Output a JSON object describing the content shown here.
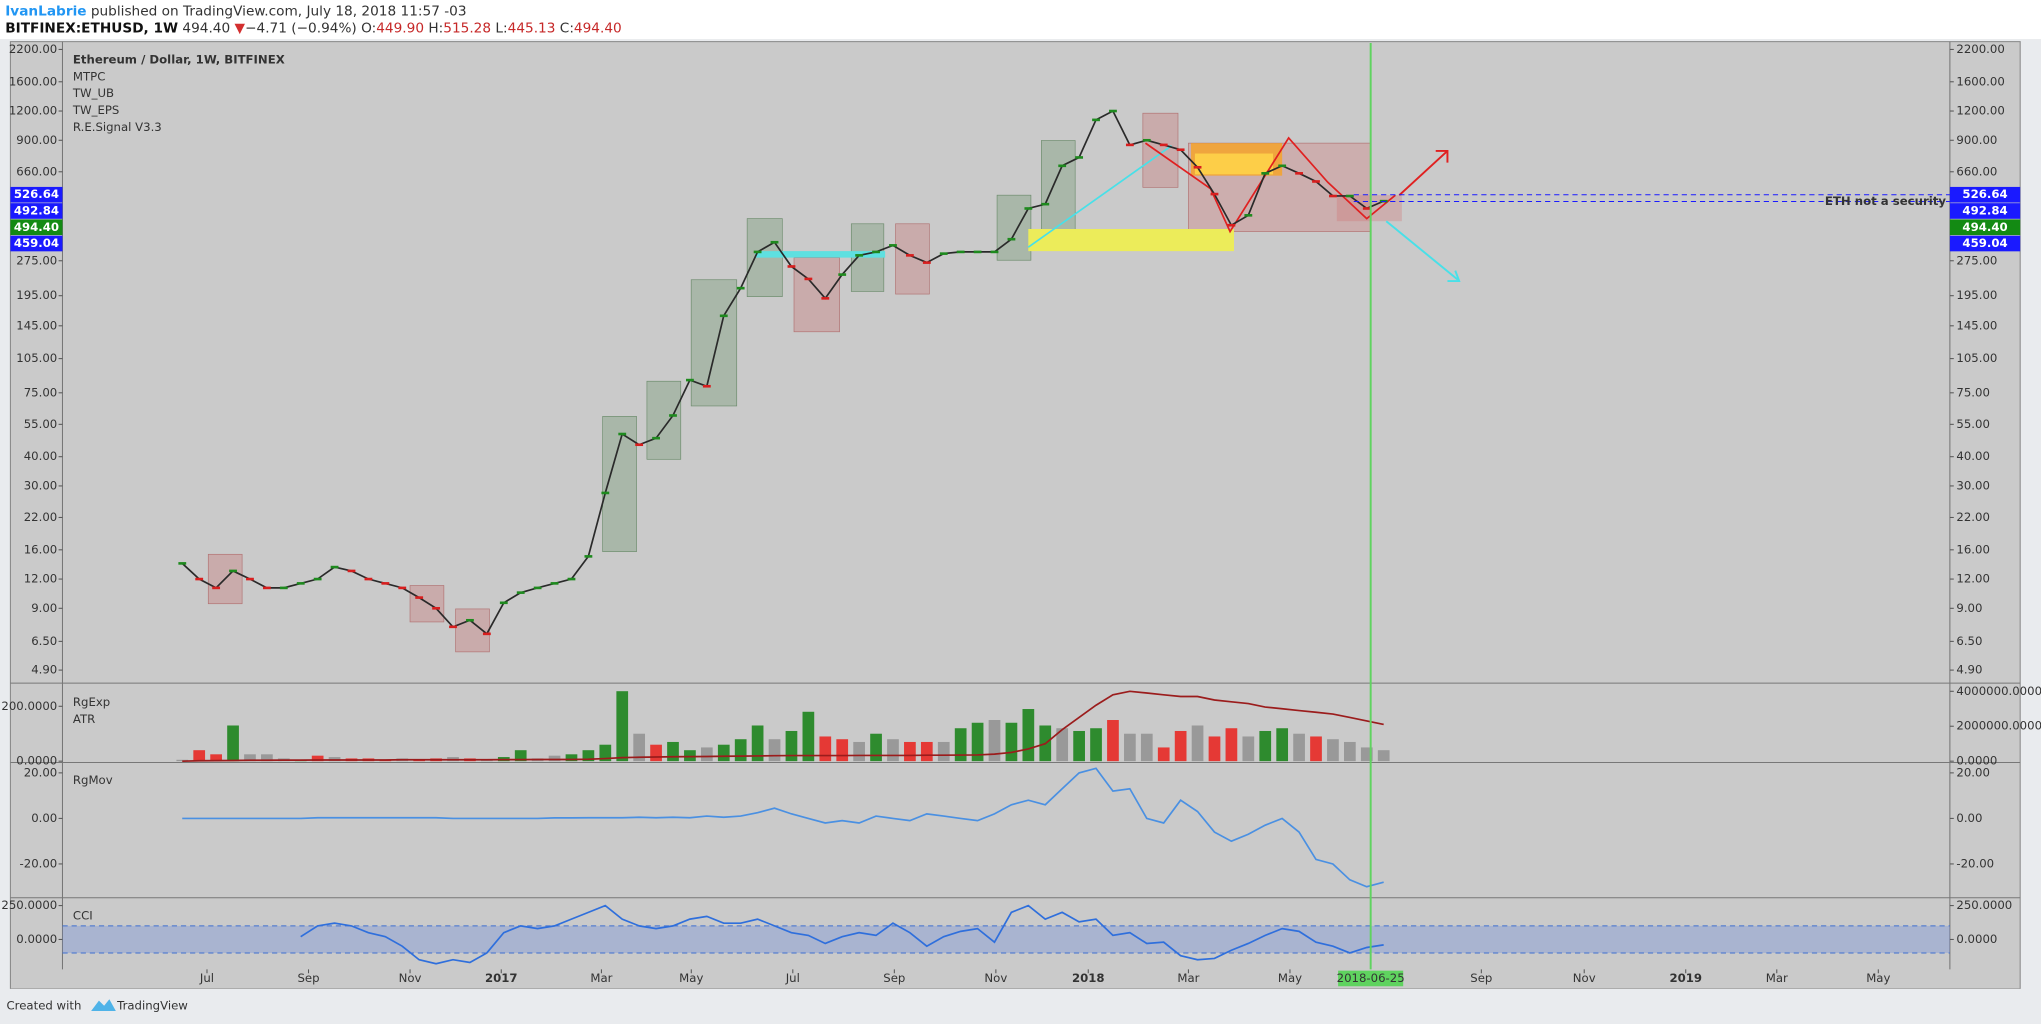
{
  "header": {
    "author": "IvanLabrie",
    "published": " published on TradingView.com, July 18, 2018 11:57 -03",
    "symbol": "BITFINEX:ETHUSD, 1W",
    "last": "494.40",
    "arrow": "▼",
    "change": "−4.71 (−0.94%)",
    "o_label": "O:",
    "o": "449.90",
    "h_label": "H:",
    "h": "515.28",
    "l_label": "L:",
    "l": "445.13",
    "c_label": "C:",
    "c": "494.40"
  },
  "chart_data": [
    {
      "type": "line",
      "title": "Ethereum / Dollar, 1W, BITFINEX",
      "indicators": [
        "MTPC",
        "TW_UB",
        "TW_EPS",
        "R.E.Signal V3.3"
      ],
      "annotation": "ETH not a security",
      "log_scale": true,
      "up_color": "#1e8a1e",
      "down_color": "#d81e1e",
      "xlim": [
        -7.08,
        104.46
      ],
      "ylim": [
        4.48,
        2345
      ],
      "yticks": [
        {
          "value": 2200,
          "label": "2200.00"
        },
        {
          "value": 1600,
          "label": "1600.00"
        },
        {
          "value": 1200,
          "label": "1200.00"
        },
        {
          "value": 900,
          "label": "900.00"
        },
        {
          "value": 660,
          "label": "660.00"
        },
        {
          "value": 275,
          "label": "275.00"
        },
        {
          "value": 195,
          "label": "195.00"
        },
        {
          "value": 145,
          "label": "145.00"
        },
        {
          "value": 105,
          "label": "105.00"
        },
        {
          "value": 75,
          "label": "75.00"
        },
        {
          "value": 55,
          "label": "55.00"
        },
        {
          "value": 40,
          "label": "40.00"
        },
        {
          "value": 30,
          "label": "30.00"
        },
        {
          "value": 22,
          "label": "22.00"
        },
        {
          "value": 16,
          "label": "16.00"
        },
        {
          "value": 12,
          "label": "12.00"
        },
        {
          "value": 9,
          "label": "9.00"
        },
        {
          "value": 6.5,
          "label": "6.50"
        },
        {
          "value": 4.9,
          "label": "4.90"
        }
      ],
      "price_labels": [
        {
          "value": 526.64,
          "label": "526.64",
          "color": "#1a1aff",
          "dashed": true
        },
        {
          "value": 492.84,
          "label": "492.84",
          "color": "#1a1aff",
          "dashed": true
        },
        {
          "value": 494.4,
          "label": "494.40",
          "color": "#138a13",
          "dashed": false
        },
        {
          "value": 459.04,
          "label": "459.04",
          "color": "#1a1aff",
          "dashed": false
        }
      ],
      "x": [
        0,
        1,
        2,
        3,
        4,
        5,
        6,
        7,
        8,
        9,
        10,
        11,
        12,
        13,
        14,
        15,
        16,
        17,
        18,
        19,
        20,
        21,
        22,
        23,
        24,
        25,
        26,
        27,
        28,
        29,
        30,
        31,
        32,
        33,
        34,
        35,
        36,
        37,
        38,
        39,
        40,
        41,
        42,
        43,
        44,
        45,
        46,
        47,
        48,
        49,
        50,
        51,
        52,
        53,
        54,
        55,
        56,
        57,
        58,
        59,
        60,
        61,
        62,
        63,
        64,
        65,
        66,
        67,
        68,
        69,
        70,
        71
      ],
      "series": [
        {
          "color": "#2a2a2a",
          "values": [
            14,
            12,
            11,
            13,
            12,
            11,
            11,
            11.5,
            12,
            13.5,
            13,
            12,
            11.5,
            11,
            10,
            9,
            7.5,
            8,
            7,
            9.5,
            10.5,
            11,
            11.5,
            12,
            15,
            28,
            50,
            45,
            48,
            60,
            85,
            80,
            160,
            210,
            300,
            330,
            260,
            230,
            190,
            240,
            290,
            300,
            320,
            290,
            270,
            295,
            300,
            300,
            300,
            340,
            460,
            480,
            700,
            760,
            1100,
            1200,
            860,
            900,
            860,
            820,
            690,
            530,
            390,
            430,
            650,
            700,
            650,
            600,
            520,
            520,
            460,
            494.4
          ]
        }
      ]
    },
    {
      "type": "bar",
      "legend_labels": [
        "RgExp",
        "ATR"
      ],
      "xlim": [
        -7.08,
        104.46
      ],
      "ylim": [
        0,
        275
      ],
      "y2lim": [
        0,
        4320000
      ],
      "yticks": [
        {
          "value": 200,
          "label": "200.0000"
        },
        {
          "value": 0,
          "label": "0.0000"
        }
      ],
      "y2ticks": [
        {
          "value": 4000000,
          "label": "4000000.0000"
        },
        {
          "value": 2000000,
          "label": "2000000.0000"
        },
        {
          "value": 0,
          "label": "0.0000"
        }
      ],
      "x": [
        0,
        1,
        2,
        3,
        4,
        5,
        6,
        7,
        8,
        9,
        10,
        11,
        12,
        13,
        14,
        15,
        16,
        17,
        18,
        19,
        20,
        21,
        22,
        23,
        24,
        25,
        26,
        27,
        28,
        29,
        30,
        31,
        32,
        33,
        34,
        35,
        36,
        37,
        38,
        39,
        40,
        41,
        42,
        43,
        44,
        45,
        46,
        47,
        48,
        49,
        50,
        51,
        52,
        53,
        54,
        55,
        56,
        57,
        58,
        59,
        60,
        61,
        62,
        63,
        64,
        65,
        66,
        67,
        68,
        69,
        70,
        71
      ],
      "series": [
        {
          "values": [
            5,
            40,
            25,
            130,
            25,
            25,
            10,
            5,
            20,
            15,
            10,
            10,
            5,
            10,
            5,
            10,
            15,
            10,
            5,
            15,
            40,
            10,
            20,
            25,
            40,
            60,
            255,
            100,
            60,
            70,
            40,
            50,
            60,
            80,
            130,
            80,
            110,
            180,
            90,
            80,
            70,
            100,
            80,
            70,
            70,
            70,
            120,
            140,
            150,
            140,
            190,
            130,
            120,
            110,
            120,
            150,
            100,
            100,
            50,
            110,
            130,
            90,
            120,
            90,
            110,
            120,
            100,
            90,
            80,
            70,
            50,
            40
          ],
          "colors": [
            "#999999",
            "#e53935",
            "#e53935",
            "#2e8b2e",
            "#999999",
            "#999999",
            "#999999",
            "#2e8b2e",
            "#e53935",
            "#999999",
            "#e53935",
            "#e53935",
            "#e53935",
            "#999999",
            "#e53935",
            "#e53935",
            "#999999",
            "#e53935",
            "#999999",
            "#2e8b2e",
            "#2e8b2e",
            "#999999",
            "#999999",
            "#2e8b2e",
            "#2e8b2e",
            "#2e8b2e",
            "#2e8b2e",
            "#999999",
            "#e53935",
            "#2e8b2e",
            "#2e8b2e",
            "#999999",
            "#2e8b2e",
            "#2e8b2e",
            "#2e8b2e",
            "#999999",
            "#2e8b2e",
            "#2e8b2e",
            "#e53935",
            "#e53935",
            "#999999",
            "#2e8b2e",
            "#999999",
            "#e53935",
            "#e53935",
            "#999999",
            "#2e8b2e",
            "#2e8b2e",
            "#999999",
            "#2e8b2e",
            "#2e8b2e",
            "#2e8b2e",
            "#999999",
            "#2e8b2e",
            "#2e8b2e",
            "#e53935",
            "#999999",
            "#999999",
            "#e53935",
            "#e53935",
            "#999999",
            "#e53935",
            "#e53935",
            "#999999",
            "#2e8b2e",
            "#2e8b2e",
            "#999999",
            "#e53935",
            "#999999",
            "#999999",
            "#999999",
            "#999999"
          ]
        },
        {
          "axis": "y2",
          "color": "#9b1c1c",
          "values": [
            0,
            20000,
            30000,
            40000,
            50000,
            50000,
            60000,
            60000,
            70000,
            70000,
            70000,
            70000,
            70000,
            80000,
            80000,
            80000,
            80000,
            80000,
            80000,
            90000,
            90000,
            100000,
            100000,
            100000,
            110000,
            150000,
            200000,
            220000,
            240000,
            250000,
            260000,
            270000,
            280000,
            290000,
            300000,
            310000,
            320000,
            320000,
            320000,
            320000,
            330000,
            330000,
            330000,
            330000,
            340000,
            340000,
            350000,
            360000,
            400000,
            500000,
            700000,
            1000000,
            1800000,
            2500000,
            3200000,
            3800000,
            4000000,
            3900000,
            3800000,
            3700000,
            3700000,
            3500000,
            3400000,
            3300000,
            3100000,
            3000000,
            2900000,
            2800000,
            2700000,
            2500000,
            2300000,
            2100000
          ]
        }
      ]
    },
    {
      "type": "line",
      "legend_labels": [
        "RgMov"
      ],
      "xlim": [
        -7.08,
        104.46
      ],
      "ylim": [
        -34.3,
        24
      ],
      "yticks": [
        {
          "value": 20,
          "label": "20.00"
        },
        {
          "value": 0,
          "label": "0.00"
        },
        {
          "value": -20,
          "label": "-20.00"
        }
      ],
      "x": [
        0,
        1,
        2,
        3,
        4,
        5,
        6,
        7,
        8,
        9,
        10,
        11,
        12,
        13,
        14,
        15,
        16,
        17,
        18,
        19,
        20,
        21,
        22,
        23,
        24,
        25,
        26,
        27,
        28,
        29,
        30,
        31,
        32,
        33,
        34,
        35,
        36,
        37,
        38,
        39,
        40,
        41,
        42,
        43,
        44,
        45,
        46,
        47,
        48,
        49,
        50,
        51,
        52,
        53,
        54,
        55,
        56,
        57,
        58,
        59,
        60,
        61,
        62,
        63,
        64,
        65,
        66,
        67,
        68,
        69,
        70,
        71
      ],
      "series": [
        {
          "color": "#4a90e2",
          "values": [
            0,
            0,
            0,
            0,
            0,
            0,
            0,
            0,
            0.3,
            0.3,
            0.3,
            0.3,
            0.3,
            0.3,
            0.3,
            0.3,
            0,
            0,
            0,
            0,
            0,
            0,
            0.2,
            0.2,
            0.3,
            0.3,
            0.3,
            0.5,
            0.3,
            0.5,
            0.3,
            1,
            0.5,
            1,
            2.5,
            4.5,
            2,
            0,
            -2,
            -1,
            -2,
            1,
            0,
            -1,
            2,
            1,
            0,
            -1,
            2,
            6,
            8,
            6,
            13,
            20,
            22,
            12,
            13,
            0,
            -2,
            8,
            3,
            -6,
            -10,
            -7,
            -3,
            0,
            -6,
            -18,
            -20,
            -27,
            -30,
            -28
          ]
        }
      ]
    },
    {
      "type": "line",
      "legend_labels": [
        "CCI"
      ],
      "xlim": [
        -7.08,
        104.46
      ],
      "ylim": [
        -221,
        298
      ],
      "band": [
        -100,
        100
      ],
      "yticks": [
        {
          "value": 250,
          "label": "250.0000"
        },
        {
          "value": 0,
          "label": "0.0000"
        }
      ],
      "xticks": [
        {
          "value": 1.46,
          "label": "Jul"
        },
        {
          "value": 7.46,
          "label": "Sep"
        },
        {
          "value": 13.46,
          "label": "Nov"
        },
        {
          "value": 18.85,
          "label": "2017"
        },
        {
          "value": 24.77,
          "label": "Mar"
        },
        {
          "value": 30.08,
          "label": "May"
        },
        {
          "value": 36.08,
          "label": "Jul"
        },
        {
          "value": 42.08,
          "label": "Sep"
        },
        {
          "value": 48.08,
          "label": "Nov"
        },
        {
          "value": 53.54,
          "label": "2018"
        },
        {
          "value": 59.46,
          "label": "Mar"
        },
        {
          "value": 65.46,
          "label": "May"
        },
        {
          "value": 76.77,
          "label": "Sep"
        },
        {
          "value": 82.85,
          "label": "Nov"
        },
        {
          "value": 88.85,
          "label": "2019"
        },
        {
          "value": 94.23,
          "label": "Mar"
        },
        {
          "value": 100.23,
          "label": "May"
        }
      ],
      "cursor": {
        "value": 70.23,
        "label": "2018-06-25",
        "color": "#5fd35f"
      },
      "x": [
        0,
        1,
        2,
        3,
        4,
        5,
        6,
        7,
        8,
        9,
        10,
        11,
        12,
        13,
        14,
        15,
        16,
        17,
        18,
        19,
        20,
        21,
        22,
        23,
        24,
        25,
        26,
        27,
        28,
        29,
        30,
        31,
        32,
        33,
        34,
        35,
        36,
        37,
        38,
        39,
        40,
        41,
        42,
        43,
        44,
        45,
        46,
        47,
        48,
        49,
        50,
        51,
        52,
        53,
        54,
        55,
        56,
        57,
        58,
        59,
        60,
        61,
        62,
        63,
        64,
        65,
        66,
        67,
        68,
        69,
        70,
        71
      ],
      "series": [
        {
          "color": "#2f6fdc",
          "values": [
            null,
            null,
            null,
            null,
            null,
            null,
            null,
            20,
            100,
            120,
            100,
            50,
            20,
            -50,
            -150,
            -180,
            -150,
            -170,
            -100,
            50,
            100,
            80,
            100,
            150,
            200,
            250,
            150,
            100,
            80,
            100,
            150,
            170,
            120,
            120,
            150,
            100,
            50,
            30,
            -30,
            20,
            50,
            30,
            120,
            50,
            -50,
            20,
            60,
            80,
            -20,
            200,
            250,
            150,
            200,
            130,
            150,
            30,
            50,
            -30,
            -20,
            -120,
            -150,
            -140,
            -80,
            -30,
            30,
            80,
            60,
            -20,
            -50,
            -100,
            -60,
            -40
          ]
        }
      ]
    }
  ],
  "footer": {
    "created": "Created with",
    "brand": "TradingView"
  }
}
